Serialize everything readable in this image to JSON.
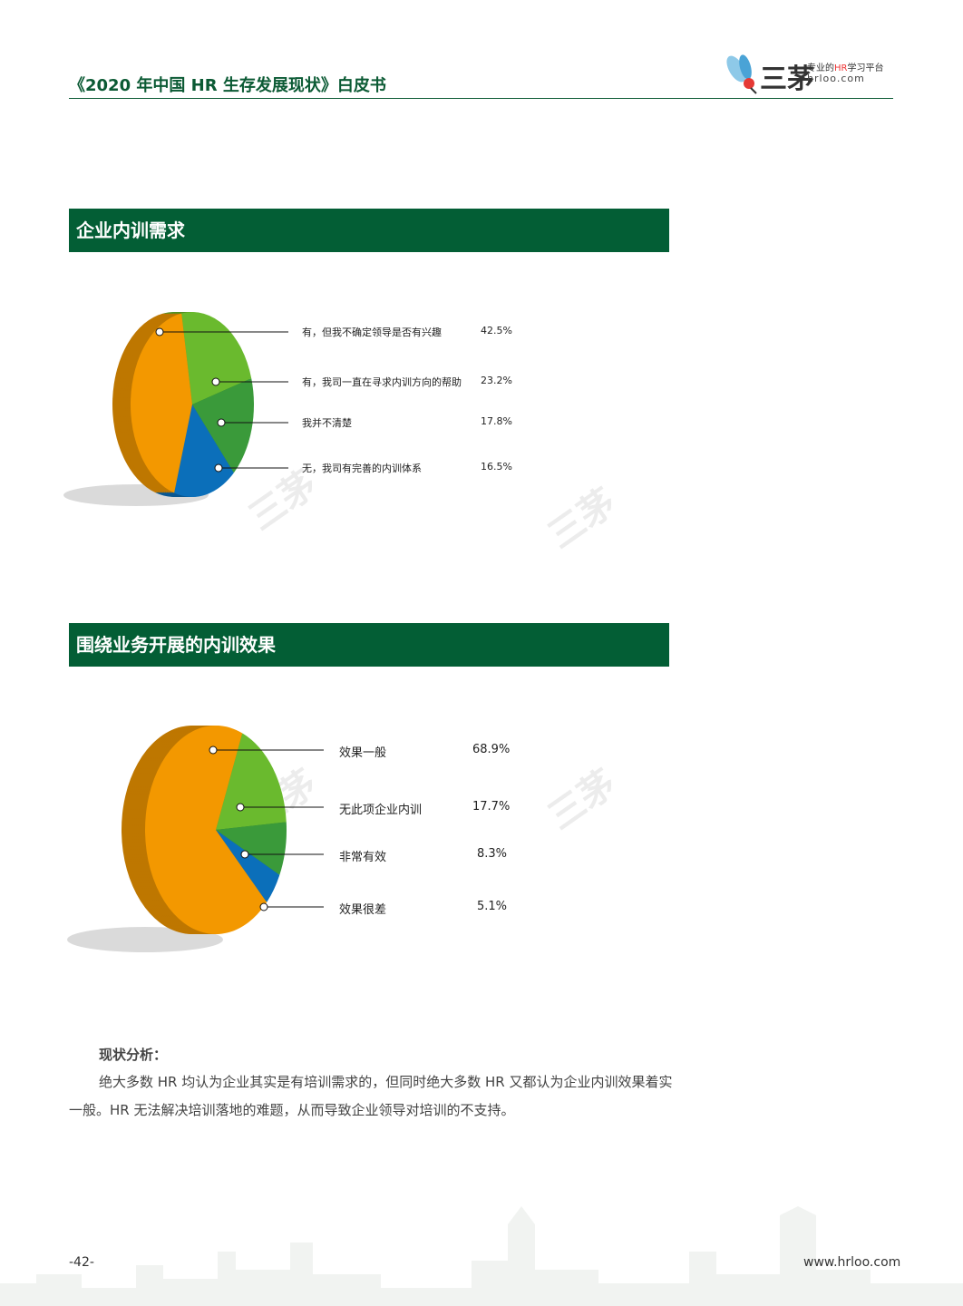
{
  "header": {
    "title": "《2020 年中国 HR 生存发展现状》白皮书",
    "logo": {
      "name": "三茅",
      "tagline_pre": "专业的",
      "tagline_hr": "HR",
      "tagline_post": "学习平台",
      "url": "hrloo.com"
    }
  },
  "sections": [
    {
      "title": "企业内训需求"
    },
    {
      "title": "围绕业务开展的内训效果"
    }
  ],
  "chart_data": [
    {
      "type": "pie",
      "title": "企业内训需求",
      "categories": [
        "有，但我不确定领导是否有兴趣",
        "有，我司一直在寻求内训方向的帮助",
        "我并不清楚",
        "无，我司有完善的内训体系"
      ],
      "values": [
        42.5,
        23.2,
        17.8,
        16.5
      ],
      "labels": [
        "42.5%",
        "23.2%",
        "17.8%",
        "16.5%"
      ],
      "colors": [
        "#f39800",
        "#6aba2e",
        "#3a9a3a",
        "#0b6fba"
      ],
      "legend": "right"
    },
    {
      "type": "pie",
      "title": "围绕业务开展的内训效果",
      "categories": [
        "效果一般",
        "无此项企业内训",
        "非常有效",
        "效果很差"
      ],
      "values": [
        68.9,
        17.7,
        8.3,
        5.1
      ],
      "labels": [
        "68.9%",
        "17.7%",
        "8.3%",
        "5.1%"
      ],
      "colors": [
        "#f39800",
        "#6aba2e",
        "#3a9a3a",
        "#0b6fba"
      ],
      "legend": "right"
    }
  ],
  "analysis": {
    "heading": "现状分析：",
    "body": "绝大多数 HR 均认为企业其实是有培训需求的，但同时绝大多数 HR 又都认为企业内训效果着实一般。HR 无法解决培训落地的难题，从而导致企业领导对培训的不支持。"
  },
  "footer": {
    "page": "-42-",
    "url": "www.hrloo.com"
  }
}
